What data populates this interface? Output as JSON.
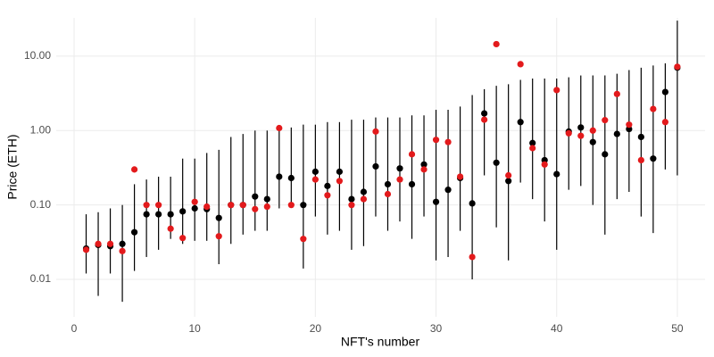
{
  "chart_data": {
    "type": "scatter",
    "x_label": "NFT's number",
    "y_label": "Price (ETH)",
    "y_log": true,
    "grid": true,
    "xlim": [
      -1.48,
      52.3
    ],
    "ylim": [
      0.00314,
      32.7
    ],
    "xticks": [
      0,
      10,
      20,
      30,
      40,
      50
    ],
    "yticks": [
      0.01,
      {
        "value": 0.1,
        "label": "0.10"
      },
      {
        "value": 1,
        "label": "1.00"
      },
      {
        "value": 10,
        "label": "10.00"
      }
    ],
    "x": [
      1,
      2,
      3,
      4,
      5,
      6,
      7,
      8,
      9,
      10,
      11,
      12,
      13,
      14,
      15,
      16,
      17,
      18,
      19,
      20,
      21,
      22,
      23,
      24,
      25,
      26,
      27,
      28,
      29,
      30,
      31,
      32,
      33,
      34,
      35,
      36,
      37,
      38,
      39,
      40,
      41,
      42,
      43,
      44,
      45,
      46,
      47,
      48,
      49,
      50
    ],
    "series": [
      {
        "color": "#000000",
        "values": [
          0.026,
          0.029,
          0.028,
          0.03,
          0.043,
          0.075,
          0.075,
          0.075,
          0.082,
          0.09,
          0.088,
          0.067,
          0.1,
          0.1,
          0.13,
          0.12,
          0.24,
          0.23,
          0.1,
          0.28,
          0.18,
          0.28,
          0.12,
          0.15,
          0.33,
          0.19,
          0.31,
          0.19,
          0.35,
          0.11,
          0.16,
          0.23,
          0.105,
          1.7,
          0.37,
          0.21,
          1.3,
          0.68,
          0.4,
          0.26,
          0.97,
          1.1,
          0.7,
          0.48,
          0.9,
          1.05,
          0.82,
          0.42,
          3.3,
          7.0
        ],
        "lower": [
          0.012,
          0.006,
          0.012,
          0.005,
          0.013,
          0.02,
          0.025,
          0.035,
          0.03,
          0.033,
          0.033,
          0.016,
          0.03,
          0.04,
          0.045,
          0.045,
          0.09,
          0.1,
          0.014,
          0.07,
          0.04,
          0.045,
          0.025,
          0.028,
          0.07,
          0.045,
          0.06,
          0.035,
          0.07,
          0.018,
          0.02,
          0.045,
          0.01,
          0.25,
          0.05,
          0.018,
          0.2,
          0.12,
          0.06,
          0.025,
          0.16,
          0.18,
          0.1,
          0.04,
          0.12,
          0.15,
          0.07,
          0.042,
          0.3,
          0.25
        ],
        "upper": [
          0.075,
          0.08,
          0.09,
          0.1,
          0.19,
          0.22,
          0.24,
          0.24,
          0.42,
          0.42,
          0.5,
          0.55,
          0.82,
          0.9,
          1.0,
          1.0,
          1.1,
          1.1,
          1.2,
          1.2,
          1.3,
          1.3,
          1.4,
          1.4,
          1.5,
          1.5,
          1.5,
          1.6,
          1.6,
          1.9,
          1.9,
          2.1,
          3.0,
          3.6,
          4.0,
          4.2,
          4.8,
          5.0,
          5.0,
          5.0,
          5.2,
          5.5,
          5.5,
          5.5,
          5.8,
          6.5,
          7.0,
          7.5,
          8.0,
          30
        ]
      },
      {
        "color": "#e31a1c",
        "values": [
          0.025,
          0.03,
          0.03,
          0.024,
          0.3,
          0.1,
          0.1,
          0.048,
          0.036,
          0.11,
          0.095,
          0.038,
          0.1,
          0.1,
          0.088,
          0.095,
          1.08,
          0.1,
          0.035,
          0.22,
          0.135,
          0.21,
          0.1,
          0.12,
          0.97,
          0.14,
          0.22,
          0.48,
          0.3,
          0.75,
          0.7,
          0.24,
          0.02,
          1.4,
          14.5,
          0.25,
          7.8,
          0.58,
          0.35,
          3.5,
          0.92,
          0.85,
          1.0,
          1.38,
          3.1,
          1.2,
          0.4,
          1.95,
          1.3,
          7.2
        ]
      }
    ]
  }
}
